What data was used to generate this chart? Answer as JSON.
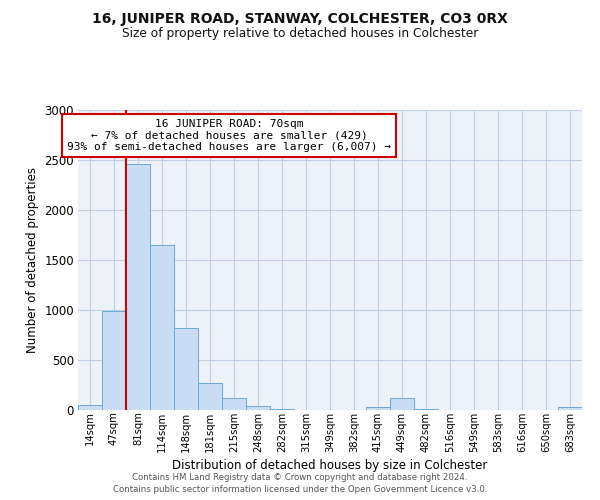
{
  "title": "16, JUNIPER ROAD, STANWAY, COLCHESTER, CO3 0RX",
  "subtitle": "Size of property relative to detached houses in Colchester",
  "xlabel": "Distribution of detached houses by size in Colchester",
  "ylabel": "Number of detached properties",
  "categories": [
    "14sqm",
    "47sqm",
    "81sqm",
    "114sqm",
    "148sqm",
    "181sqm",
    "215sqm",
    "248sqm",
    "282sqm",
    "315sqm",
    "349sqm",
    "382sqm",
    "415sqm",
    "449sqm",
    "482sqm",
    "516sqm",
    "549sqm",
    "583sqm",
    "616sqm",
    "650sqm",
    "683sqm"
  ],
  "values": [
    50,
    990,
    2460,
    1650,
    820,
    270,
    120,
    40,
    8,
    5,
    2,
    2,
    30,
    125,
    8,
    2,
    2,
    2,
    2,
    2,
    30
  ],
  "bar_color": "#c9ddf5",
  "bar_edge_color": "#6aaad4",
  "property_line_x": 1.5,
  "annotation_title": "16 JUNIPER ROAD: 70sqm",
  "annotation_line1": "← 7% of detached houses are smaller (429)",
  "annotation_line2": "93% of semi-detached houses are larger (6,007) →",
  "annotation_box_color": "#ffffff",
  "annotation_box_edge_color": "#cc0000",
  "red_line_color": "#cc0000",
  "footer1": "Contains HM Land Registry data © Crown copyright and database right 2024.",
  "footer2": "Contains public sector information licensed under the Open Government Licence v3.0.",
  "grid_color": "#c0d0e4",
  "background_color": "#edf2f8",
  "ylim": [
    0,
    3000
  ],
  "yticks": [
    0,
    500,
    1000,
    1500,
    2000,
    2500,
    3000
  ]
}
